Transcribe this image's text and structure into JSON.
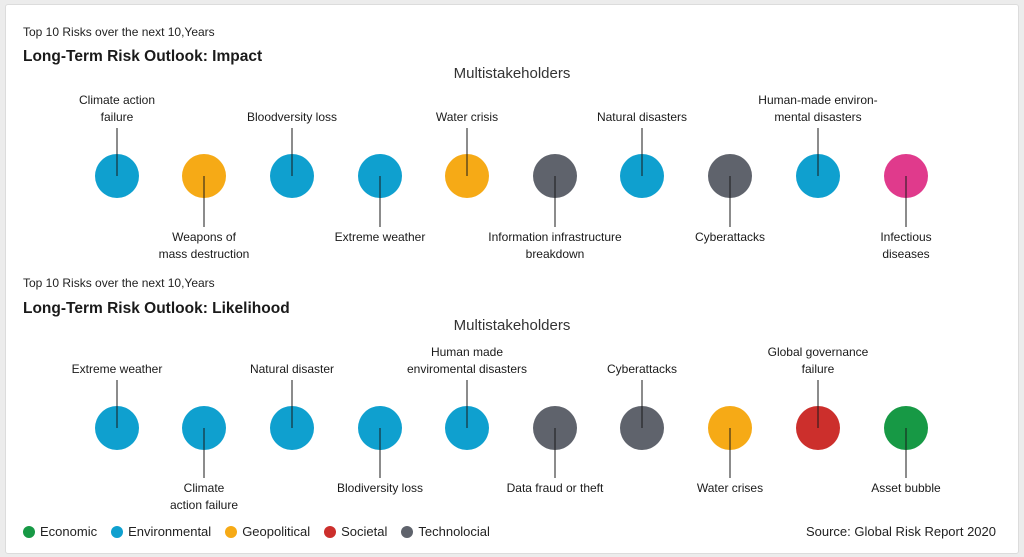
{
  "colors": {
    "Economic": "#179945",
    "Environmental": "#0fa0cf",
    "Geopolitical": "#f6aa16",
    "Societal": "#cc2f2c",
    "Technological": "#5f636c",
    "Infectious": "#e03a8c"
  },
  "impact": {
    "subtitle": "Top 10 Risks over the next 10,Years",
    "title": "Long-Term Risk Outlook: Impact",
    "group": "Multistakeholders",
    "risks": [
      {
        "label": "Climate action\nfailure",
        "pos": "top",
        "category": "Environmental"
      },
      {
        "label": "Weapons of\nmass destruction",
        "pos": "bottom",
        "category": "Geopolitical"
      },
      {
        "label": "Bloodversity loss",
        "pos": "top",
        "category": "Environmental"
      },
      {
        "label": "Extreme weather",
        "pos": "bottom",
        "category": "Environmental"
      },
      {
        "label": "Water crisis",
        "pos": "top",
        "category": "Geopolitical"
      },
      {
        "label": "Information infrastructure\nbreakdown",
        "pos": "bottom",
        "category": "Technological"
      },
      {
        "label": "Natural disasters",
        "pos": "top",
        "category": "Environmental"
      },
      {
        "label": "Cyberattacks",
        "pos": "bottom",
        "category": "Technological"
      },
      {
        "label": "Human-made environ-\nmental disasters",
        "pos": "top",
        "category": "Environmental"
      },
      {
        "label": "Infectious\ndiseases",
        "pos": "bottom",
        "category": "Infectious"
      }
    ]
  },
  "likelihood": {
    "subtitle": "Top 10 Risks over the next 10,Years",
    "title": "Long-Term Risk Outlook: Likelihood",
    "group": "Multistakeholders",
    "risks": [
      {
        "label": "Extreme weather",
        "pos": "top",
        "category": "Environmental"
      },
      {
        "label": "Climate\naction failure",
        "pos": "bottom",
        "category": "Environmental"
      },
      {
        "label": "Natural disaster",
        "pos": "top",
        "category": "Environmental"
      },
      {
        "label": "Blodiversity loss",
        "pos": "bottom",
        "category": "Environmental"
      },
      {
        "label": "Human made\nenviromental disasters",
        "pos": "top",
        "category": "Environmental"
      },
      {
        "label": "Data fraud or theft",
        "pos": "bottom",
        "category": "Technological"
      },
      {
        "label": "Cyberattacks",
        "pos": "top",
        "category": "Technological"
      },
      {
        "label": "Water crises",
        "pos": "bottom",
        "category": "Geopolitical"
      },
      {
        "label": "Global governance\nfailure",
        "pos": "top",
        "category": "Societal"
      },
      {
        "label": "Asset bubble",
        "pos": "bottom",
        "category": "Economic"
      }
    ]
  },
  "legend": [
    {
      "label": "Economic",
      "category": "Economic"
    },
    {
      "label": "Environmental",
      "category": "Environmental"
    },
    {
      "label": "Geopolitical",
      "category": "Geopolitical"
    },
    {
      "label": "Societal",
      "category": "Societal"
    },
    {
      "label": "Technolocial",
      "category": "Technological"
    }
  ],
  "source": "Source: Global Risk Report 2020"
}
